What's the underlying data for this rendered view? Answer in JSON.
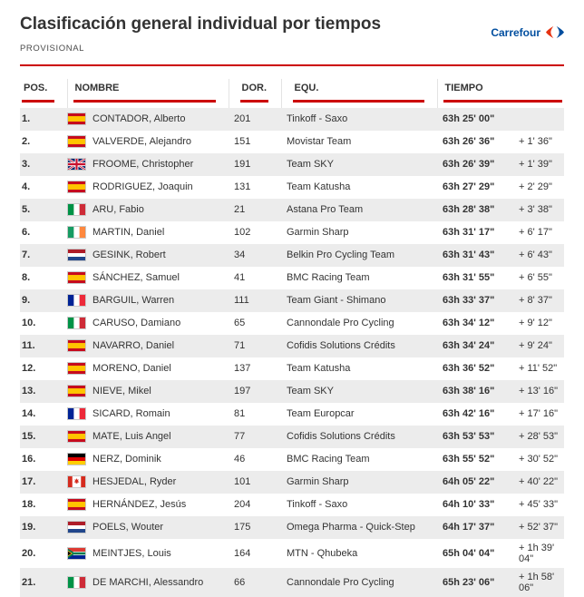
{
  "page": {
    "title": "Clasificación general individual por tiempos",
    "subtitle": "PROVISIONAL",
    "sponsor": "Carrefour"
  },
  "colors": {
    "accent": "#cc0000",
    "sponsor_blue": "#004e9f",
    "sponsor_red": "#e63312",
    "row_alt": "#ececec",
    "text": "#333333"
  },
  "table": {
    "headers": {
      "pos": "POS.",
      "name": "NOMBRE",
      "dorsal": "DOR.",
      "team": "EQU.",
      "time": "TIEMPO"
    },
    "rows": [
      {
        "pos": "1.",
        "flag": "esp",
        "name": "CONTADOR, Alberto",
        "dorsal": "201",
        "team": "Tinkoff - Saxo",
        "time": "63h 25' 00\"",
        "gap": ""
      },
      {
        "pos": "2.",
        "flag": "esp",
        "name": "VALVERDE, Alejandro",
        "dorsal": "151",
        "team": "Movistar Team",
        "time": "63h 26' 36\"",
        "gap": "+ 1' 36\""
      },
      {
        "pos": "3.",
        "flag": "gbr",
        "name": "FROOME, Christopher",
        "dorsal": "191",
        "team": "Team SKY",
        "time": "63h 26' 39\"",
        "gap": "+ 1' 39\""
      },
      {
        "pos": "4.",
        "flag": "esp",
        "name": "RODRIGUEZ, Joaquin",
        "dorsal": "131",
        "team": "Team Katusha",
        "time": "63h 27' 29\"",
        "gap": "+ 2' 29\""
      },
      {
        "pos": "5.",
        "flag": "ita",
        "name": "ARU, Fabio",
        "dorsal": "21",
        "team": "Astana Pro Team",
        "time": "63h 28' 38\"",
        "gap": "+ 3' 38\""
      },
      {
        "pos": "6.",
        "flag": "irl",
        "name": "MARTIN, Daniel",
        "dorsal": "102",
        "team": "Garmin Sharp",
        "time": "63h 31' 17\"",
        "gap": "+ 6' 17\""
      },
      {
        "pos": "7.",
        "flag": "ned",
        "name": "GESINK, Robert",
        "dorsal": "34",
        "team": "Belkin Pro Cycling Team",
        "time": "63h 31' 43\"",
        "gap": "+ 6' 43\""
      },
      {
        "pos": "8.",
        "flag": "esp",
        "name": "SÁNCHEZ, Samuel",
        "dorsal": "41",
        "team": "BMC Racing Team",
        "time": "63h 31' 55\"",
        "gap": "+ 6' 55\""
      },
      {
        "pos": "9.",
        "flag": "fra",
        "name": "BARGUIL, Warren",
        "dorsal": "111",
        "team": "Team Giant - Shimano",
        "time": "63h 33' 37\"",
        "gap": "+ 8' 37\""
      },
      {
        "pos": "10.",
        "flag": "ita",
        "name": "CARUSO, Damiano",
        "dorsal": "65",
        "team": "Cannondale Pro Cycling",
        "time": "63h 34' 12\"",
        "gap": "+ 9' 12\""
      },
      {
        "pos": "11.",
        "flag": "esp",
        "name": "NAVARRO, Daniel",
        "dorsal": "71",
        "team": "Cofidis Solutions Crédits",
        "time": "63h 34' 24\"",
        "gap": "+ 9' 24\""
      },
      {
        "pos": "12.",
        "flag": "esp",
        "name": "MORENO, Daniel",
        "dorsal": "137",
        "team": "Team Katusha",
        "time": "63h 36' 52\"",
        "gap": "+ 11' 52\""
      },
      {
        "pos": "13.",
        "flag": "esp",
        "name": "NIEVE, Mikel",
        "dorsal": "197",
        "team": "Team SKY",
        "time": "63h 38' 16\"",
        "gap": "+ 13' 16\""
      },
      {
        "pos": "14.",
        "flag": "fra",
        "name": "SICARD, Romain",
        "dorsal": "81",
        "team": "Team Europcar",
        "time": "63h 42' 16\"",
        "gap": "+ 17' 16\""
      },
      {
        "pos": "15.",
        "flag": "esp",
        "name": "MATE, Luis Angel",
        "dorsal": "77",
        "team": "Cofidis Solutions Crédits",
        "time": "63h 53' 53\"",
        "gap": "+ 28' 53\""
      },
      {
        "pos": "16.",
        "flag": "ger",
        "name": "NERZ, Dominik",
        "dorsal": "46",
        "team": "BMC Racing Team",
        "time": "63h 55' 52\"",
        "gap": "+ 30' 52\""
      },
      {
        "pos": "17.",
        "flag": "can",
        "name": "HESJEDAL, Ryder",
        "dorsal": "101",
        "team": "Garmin Sharp",
        "time": "64h 05' 22\"",
        "gap": "+ 40' 22\""
      },
      {
        "pos": "18.",
        "flag": "esp",
        "name": "HERNÁNDEZ, Jesús",
        "dorsal": "204",
        "team": "Tinkoff - Saxo",
        "time": "64h 10' 33\"",
        "gap": "+ 45' 33\""
      },
      {
        "pos": "19.",
        "flag": "ned",
        "name": "POELS, Wouter",
        "dorsal": "175",
        "team": "Omega Pharma - Quick-Step",
        "time": "64h 17' 37\"",
        "gap": "+ 52' 37\""
      },
      {
        "pos": "20.",
        "flag": "rsa",
        "name": "MEINTJES, Louis",
        "dorsal": "164",
        "team": "MTN - Qhubeka",
        "time": "65h 04' 04\"",
        "gap": "+ 1h 39' 04\""
      },
      {
        "pos": "21.",
        "flag": "ita",
        "name": "DE MARCHI, Alessandro",
        "dorsal": "66",
        "team": "Cannondale Pro Cycling",
        "time": "65h 23' 06\"",
        "gap": "+ 1h 58' 06\""
      }
    ]
  }
}
